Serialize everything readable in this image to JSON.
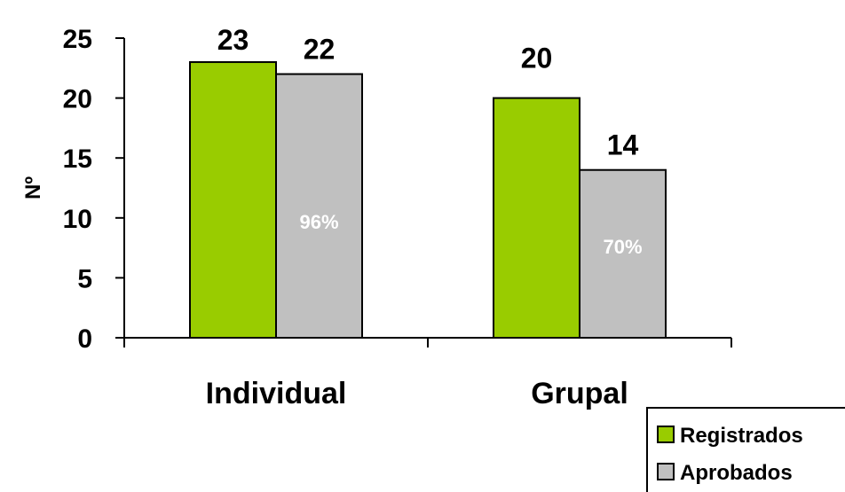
{
  "chart_data": {
    "type": "bar",
    "title": "",
    "xlabel": "",
    "ylabel": "Nº",
    "ylim": [
      0,
      25
    ],
    "yticks": [
      "0",
      "5",
      "10",
      "15",
      "20",
      "25"
    ],
    "grid": false,
    "categories": [
      "Individual",
      "Grupal"
    ],
    "series": [
      {
        "name": "Registrados",
        "values": [
          23,
          20
        ],
        "color": "#99cc00"
      },
      {
        "name": "Aprobados",
        "values": [
          22,
          14
        ],
        "color": "#c0c0c0"
      }
    ],
    "data_labels": [
      [
        "23",
        "20"
      ],
      [
        "22",
        "14"
      ]
    ],
    "annotations": [
      "96%",
      "70%"
    ],
    "legend_position": "bottom-right"
  }
}
